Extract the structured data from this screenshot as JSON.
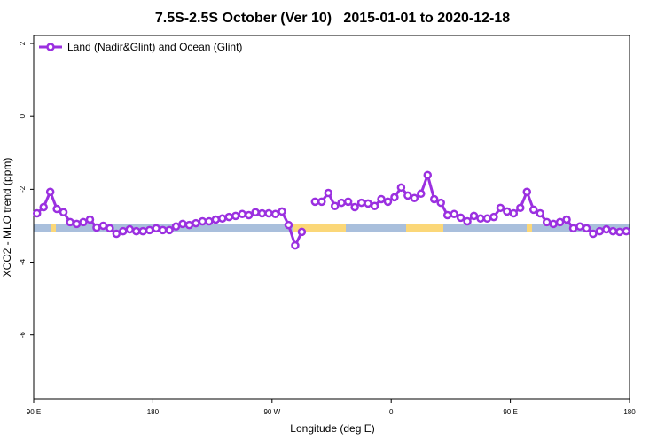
{
  "chart_data": {
    "type": "line",
    "title": "7.5S-2.5S October (Ver 10)   2015-01-01 to 2020-12-18",
    "xlabel": "Longitude (deg E)",
    "ylabel": "XCO2 - MLO trend (ppm)",
    "xlim": [
      90,
      540
    ],
    "ylim": [
      -7.76,
      2.22
    ],
    "xticks": [
      {
        "value": 90,
        "label": "90 E"
      },
      180,
      {
        "value": 270,
        "label": "90 W"
      },
      {
        "value": 360,
        "label": "0"
      },
      {
        "value": 450,
        "label": "90 E"
      },
      {
        "value": 540,
        "label": "180"
      }
    ],
    "yticks": [
      -6,
      -4,
      -2,
      0,
      2
    ],
    "legend": "top-left",
    "x": [
      92.5,
      97.5,
      102.5,
      107.5,
      112.5,
      117.5,
      122.5,
      127.5,
      132.5,
      137.5,
      142.5,
      147.5,
      152.5,
      157.5,
      162.5,
      167.5,
      172.5,
      177.5,
      182.5,
      187.5,
      192.5,
      197.5,
      202.5,
      207.5,
      212.5,
      217.5,
      222.5,
      227.5,
      232.5,
      237.5,
      242.5,
      247.5,
      252.5,
      257.5,
      262.5,
      267.5,
      272.5,
      277.5,
      282.5,
      287.5,
      292.5,
      297.5,
      302.5,
      307.5,
      312.5,
      317.5,
      322.5,
      327.5,
      332.5,
      337.5,
      342.5,
      347.5,
      352.5,
      357.5,
      362.5,
      367.5,
      372.5,
      377.5,
      382.5,
      387.5,
      392.5,
      397.5,
      402.5,
      407.5,
      412.5,
      417.5,
      422.5,
      427.5,
      432.5,
      437.5,
      442.5,
      447.5,
      452.5,
      457.5,
      462.5,
      467.5,
      472.5,
      477.5,
      482.5,
      487.5,
      492.5,
      497.5,
      502.5,
      507.5,
      512.5,
      517.5,
      522.5,
      527.5,
      532.5,
      537.5
    ],
    "series": [
      {
        "name": "Land (Nadir&Glint) and Ocean (Glint)",
        "color": "#9b30e0",
        "values": [
          -2.66,
          -2.49,
          -2.07,
          -2.54,
          -2.63,
          -2.9,
          -2.95,
          -2.9,
          -2.83,
          -3.05,
          -3.0,
          -3.07,
          -3.22,
          -3.15,
          -3.1,
          -3.15,
          -3.15,
          -3.12,
          -3.07,
          -3.12,
          -3.12,
          -3.02,
          -2.95,
          -2.98,
          -2.93,
          -2.88,
          -2.88,
          -2.83,
          -2.8,
          -2.76,
          -2.73,
          -2.68,
          -2.71,
          -2.63,
          -2.66,
          -2.66,
          -2.68,
          -2.61,
          -2.98,
          -3.54,
          -3.17,
          null,
          -2.34,
          -2.34,
          -2.1,
          -2.46,
          -2.37,
          -2.34,
          -2.49,
          -2.37,
          -2.39,
          -2.46,
          -2.27,
          -2.34,
          -2.22,
          -1.95,
          -2.17,
          -2.24,
          -2.12,
          -1.61,
          -2.27,
          -2.37,
          -2.71,
          -2.68,
          -2.78,
          -2.88,
          -2.73,
          -2.8,
          -2.8,
          -2.76,
          -2.51,
          -2.61,
          -2.66,
          -2.51,
          -2.07,
          -2.56,
          -2.66,
          -2.9,
          -2.95,
          -2.9,
          -2.83,
          -3.07,
          -3.02,
          -3.07,
          -3.22,
          -3.15,
          -3.1,
          -3.15,
          -3.17,
          -3.15
        ]
      }
    ]
  }
}
